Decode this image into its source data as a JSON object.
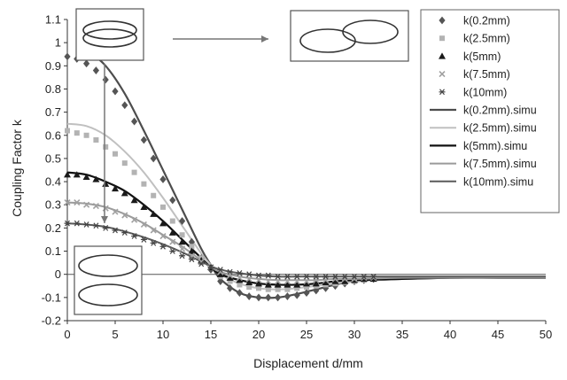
{
  "chart_data": {
    "type": "line",
    "xlabel": "Displacement d/mm",
    "ylabel": "Coupling Factor k",
    "xlim": [
      0,
      50
    ],
    "ylim": [
      -0.2,
      1.1
    ],
    "x_ticks": [
      0,
      5,
      10,
      15,
      20,
      25,
      30,
      35,
      40,
      45,
      50
    ],
    "y_ticks": [
      -0.2,
      -0.1,
      0,
      0.1,
      0.2,
      0.3,
      0.4,
      0.5,
      0.6,
      0.7,
      0.8,
      0.9,
      1,
      1.1
    ],
    "y_tick_labels": [
      "-0.2",
      "-0.1",
      "0",
      "0.1",
      "0.2",
      "0.3",
      "0.4",
      "0.5",
      "0.6",
      "0.7",
      "0.8",
      "0.9",
      "1",
      "1.1"
    ],
    "grid": false,
    "legend_position": "top-right",
    "series": [
      {
        "name": "k(0.2mm)",
        "kind": "marker",
        "marker": "diamond",
        "color": "#555555",
        "x": [
          0,
          1,
          2,
          3,
          4,
          5,
          6,
          7,
          8,
          9,
          10,
          11,
          12,
          13,
          14,
          15,
          16,
          17,
          18,
          19,
          20,
          21,
          22,
          23,
          24,
          25,
          26,
          27,
          28,
          29,
          30,
          31,
          32
        ],
        "y": [
          0.94,
          0.93,
          0.91,
          0.88,
          0.84,
          0.79,
          0.73,
          0.66,
          0.58,
          0.5,
          0.41,
          0.32,
          0.23,
          0.14,
          0.07,
          0.02,
          -0.03,
          -0.06,
          -0.08,
          -0.095,
          -0.1,
          -0.1,
          -0.1,
          -0.095,
          -0.09,
          -0.08,
          -0.07,
          -0.06,
          -0.05,
          -0.04,
          -0.03,
          -0.025,
          -0.02
        ]
      },
      {
        "name": "k(2.5mm)",
        "kind": "marker",
        "marker": "square",
        "color": "#b3b3b3",
        "x": [
          0,
          1,
          2,
          3,
          4,
          5,
          6,
          7,
          8,
          9,
          10,
          11,
          12,
          13,
          14,
          15,
          16,
          17,
          18,
          19,
          20,
          21,
          22,
          23,
          24,
          25,
          26,
          27,
          28,
          29,
          30,
          31,
          32
        ],
        "y": [
          0.62,
          0.61,
          0.6,
          0.58,
          0.55,
          0.52,
          0.48,
          0.44,
          0.39,
          0.34,
          0.29,
          0.23,
          0.17,
          0.12,
          0.07,
          0.03,
          -0.01,
          -0.03,
          -0.045,
          -0.055,
          -0.06,
          -0.065,
          -0.065,
          -0.065,
          -0.06,
          -0.055,
          -0.05,
          -0.045,
          -0.04,
          -0.035,
          -0.03,
          -0.025,
          -0.02
        ]
      },
      {
        "name": "k(5mm)",
        "kind": "marker",
        "marker": "triangle",
        "color": "#1a1a1a",
        "x": [
          0,
          1,
          2,
          3,
          4,
          5,
          6,
          7,
          8,
          9,
          10,
          11,
          12,
          13,
          14,
          15,
          16,
          17,
          18,
          19,
          20,
          21,
          22,
          23,
          24,
          25,
          26,
          27,
          28,
          29,
          30,
          31,
          32
        ],
        "y": [
          0.43,
          0.43,
          0.42,
          0.41,
          0.39,
          0.37,
          0.35,
          0.32,
          0.29,
          0.26,
          0.22,
          0.18,
          0.14,
          0.1,
          0.06,
          0.03,
          0.0,
          -0.015,
          -0.025,
          -0.035,
          -0.04,
          -0.045,
          -0.045,
          -0.045,
          -0.045,
          -0.04,
          -0.04,
          -0.035,
          -0.03,
          -0.03,
          -0.025,
          -0.02,
          -0.02
        ]
      },
      {
        "name": "k(7.5mm)",
        "kind": "marker",
        "marker": "x",
        "color": "#a0a0a0",
        "x": [
          0,
          1,
          2,
          3,
          4,
          5,
          6,
          7,
          8,
          9,
          10,
          11,
          12,
          13,
          14,
          15,
          16,
          17,
          18,
          19,
          20,
          21,
          22,
          23,
          24,
          25,
          26,
          27,
          28,
          29,
          30,
          31,
          32
        ],
        "y": [
          0.31,
          0.31,
          0.3,
          0.295,
          0.285,
          0.27,
          0.255,
          0.235,
          0.215,
          0.19,
          0.165,
          0.14,
          0.11,
          0.08,
          0.055,
          0.03,
          0.01,
          -0.005,
          -0.015,
          -0.02,
          -0.025,
          -0.03,
          -0.03,
          -0.03,
          -0.03,
          -0.03,
          -0.025,
          -0.025,
          -0.02,
          -0.02,
          -0.02,
          -0.015,
          -0.015
        ]
      },
      {
        "name": "k(10mm)",
        "kind": "marker",
        "marker": "asterisk",
        "color": "#444444",
        "x": [
          0,
          1,
          2,
          3,
          4,
          5,
          6,
          7,
          8,
          9,
          10,
          11,
          12,
          13,
          14,
          15,
          16,
          17,
          18,
          19,
          20,
          21,
          22,
          23,
          24,
          25,
          26,
          27,
          28,
          29,
          30,
          31,
          32
        ],
        "y": [
          0.22,
          0.22,
          0.215,
          0.21,
          0.2,
          0.19,
          0.18,
          0.165,
          0.15,
          0.135,
          0.12,
          0.1,
          0.08,
          0.065,
          0.045,
          0.03,
          0.02,
          0.01,
          0.005,
          0.0,
          -0.005,
          -0.005,
          -0.01,
          -0.01,
          -0.01,
          -0.01,
          -0.01,
          -0.01,
          -0.01,
          -0.01,
          -0.01,
          -0.01,
          -0.01
        ]
      },
      {
        "name": "k(0.2mm).simu",
        "kind": "line",
        "color": "#4d4d4d",
        "width": 2.2,
        "x": [
          1,
          2,
          4,
          6,
          8,
          10,
          12,
          14,
          15,
          16,
          18,
          20,
          22,
          24,
          26,
          28,
          30,
          35,
          40,
          45,
          50
        ],
        "y": [
          0.99,
          0.97,
          0.9,
          0.78,
          0.62,
          0.45,
          0.28,
          0.11,
          0.04,
          -0.02,
          -0.08,
          -0.1,
          -0.1,
          -0.085,
          -0.065,
          -0.045,
          -0.03,
          -0.02,
          -0.015,
          -0.015,
          -0.015
        ]
      },
      {
        "name": "k(2.5mm).simu",
        "kind": "line",
        "color": "#c0c0c0",
        "width": 2,
        "x": [
          0,
          2,
          4,
          6,
          8,
          10,
          12,
          14,
          15,
          16,
          18,
          20,
          22,
          24,
          26,
          28,
          30,
          35,
          40,
          45,
          50
        ],
        "y": [
          0.65,
          0.64,
          0.6,
          0.53,
          0.44,
          0.33,
          0.21,
          0.09,
          0.04,
          0.0,
          -0.04,
          -0.06,
          -0.065,
          -0.06,
          -0.05,
          -0.04,
          -0.03,
          -0.02,
          -0.015,
          -0.015,
          -0.015
        ]
      },
      {
        "name": "k(5mm).simu",
        "kind": "line",
        "color": "#111111",
        "width": 2.2,
        "x": [
          0,
          2,
          4,
          6,
          8,
          10,
          12,
          14,
          15,
          16,
          18,
          20,
          22,
          24,
          26,
          28,
          30,
          35,
          40,
          45,
          50
        ],
        "y": [
          0.44,
          0.43,
          0.4,
          0.36,
          0.3,
          0.23,
          0.15,
          0.07,
          0.03,
          0.0,
          -0.025,
          -0.04,
          -0.045,
          -0.045,
          -0.04,
          -0.03,
          -0.025,
          -0.02,
          -0.015,
          -0.015,
          -0.015
        ]
      },
      {
        "name": "k(7.5mm).simu",
        "kind": "line",
        "color": "#9a9a9a",
        "width": 2,
        "x": [
          0,
          2,
          4,
          6,
          8,
          10,
          12,
          14,
          15,
          16,
          18,
          20,
          22,
          24,
          26,
          28,
          30,
          35,
          40,
          45,
          50
        ],
        "y": [
          0.31,
          0.305,
          0.29,
          0.26,
          0.22,
          0.17,
          0.12,
          0.06,
          0.03,
          0.01,
          -0.01,
          -0.02,
          -0.025,
          -0.025,
          -0.025,
          -0.02,
          -0.02,
          -0.015,
          -0.015,
          -0.015,
          -0.015
        ]
      },
      {
        "name": "k(10mm).simu",
        "kind": "line",
        "color": "#5a5a5a",
        "width": 2,
        "x": [
          0,
          2,
          4,
          6,
          8,
          10,
          12,
          14,
          15,
          16,
          18,
          20,
          22,
          24,
          26,
          28,
          30,
          35,
          40,
          45,
          50
        ],
        "y": [
          0.22,
          0.215,
          0.205,
          0.185,
          0.16,
          0.13,
          0.095,
          0.055,
          0.035,
          0.02,
          0.005,
          -0.005,
          -0.01,
          -0.01,
          -0.01,
          -0.01,
          -0.01,
          -0.01,
          -0.01,
          -0.01,
          -0.01
        ]
      }
    ]
  },
  "insets": [
    {
      "id": "aligned-coils",
      "depicts": "two coils stacked with small vertical offset"
    },
    {
      "id": "offset-coils",
      "depicts": "two coils laterally displaced"
    },
    {
      "id": "separated-coils",
      "depicts": "two coils separated vertically"
    }
  ],
  "colors": {
    "background": "#ffffff",
    "axis": "#333333",
    "arrow": "#777777",
    "inset_border": "#555555"
  }
}
